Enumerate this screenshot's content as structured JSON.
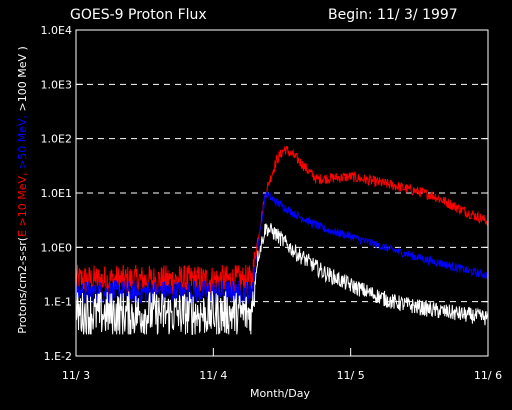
{
  "chart_data": {
    "type": "line",
    "title": "GOES-9 Proton Flux",
    "subtitle": "Begin: 11/ 3/ 1997",
    "xlabel": "Month/Day",
    "ylabel_parts": [
      {
        "text": "Protons/cm2-s-sr(",
        "color": "#ffffff"
      },
      {
        "text": "E >10 MeV, ",
        "color": "#ff0000"
      },
      {
        "text": ">50 MeV, ",
        "color": "#0000ff"
      },
      {
        "text": ">100 MeV )",
        "color": "#ffffff"
      }
    ],
    "y_scale": "log",
    "ylim": [
      0.01,
      10000
    ],
    "y_ticks": [
      {
        "value": 10000,
        "label": "1.0E4"
      },
      {
        "value": 1000,
        "label": "1.0E3"
      },
      {
        "value": 100,
        "label": "1.0E2"
      },
      {
        "value": 10,
        "label": "1.0E1"
      },
      {
        "value": 1,
        "label": "1.0E0"
      },
      {
        "value": 0.1,
        "label": "1.E-1"
      },
      {
        "value": 0.01,
        "label": "1.E-2"
      }
    ],
    "grid": "dashed horizontal at decades",
    "xlim": [
      0,
      3
    ],
    "x_ticks": [
      {
        "value": 0,
        "label": "11/ 3"
      },
      {
        "value": 1,
        "label": "11/ 4"
      },
      {
        "value": 2,
        "label": "11/ 5"
      },
      {
        "value": 3,
        "label": "11/ 6"
      }
    ],
    "series": [
      {
        "name": "E >10 MeV",
        "color": "#ff0000",
        "x": [
          0,
          0.5,
          1.0,
          1.28,
          1.32,
          1.38,
          1.46,
          1.52,
          1.6,
          1.75,
          2.0,
          2.3,
          2.6,
          2.8,
          3.0
        ],
        "y": [
          0.25,
          0.25,
          0.25,
          0.25,
          1.2,
          10,
          40,
          65,
          45,
          18,
          20,
          14,
          9,
          5,
          3
        ],
        "noise": 0.28
      },
      {
        "name": ">50 MeV",
        "color": "#0000ff",
        "x": [
          0,
          0.5,
          1.0,
          1.28,
          1.32,
          1.38,
          1.45,
          1.6,
          1.8,
          2.0,
          2.3,
          2.6,
          3.0
        ],
        "y": [
          0.15,
          0.15,
          0.15,
          0.15,
          0.8,
          10,
          7,
          4,
          2.2,
          1.6,
          0.9,
          0.55,
          0.3
        ],
        "noise": 0.22
      },
      {
        "name": ">100 MeV",
        "color": "#ffffff",
        "x": [
          0,
          0.5,
          1.0,
          1.28,
          1.32,
          1.38,
          1.45,
          1.6,
          1.8,
          2.0,
          2.3,
          2.6,
          3.0
        ],
        "y": [
          0.06,
          0.06,
          0.06,
          0.06,
          0.6,
          2.3,
          1.8,
          0.8,
          0.35,
          0.2,
          0.1,
          0.07,
          0.05
        ],
        "noise": 0.42
      }
    ]
  }
}
